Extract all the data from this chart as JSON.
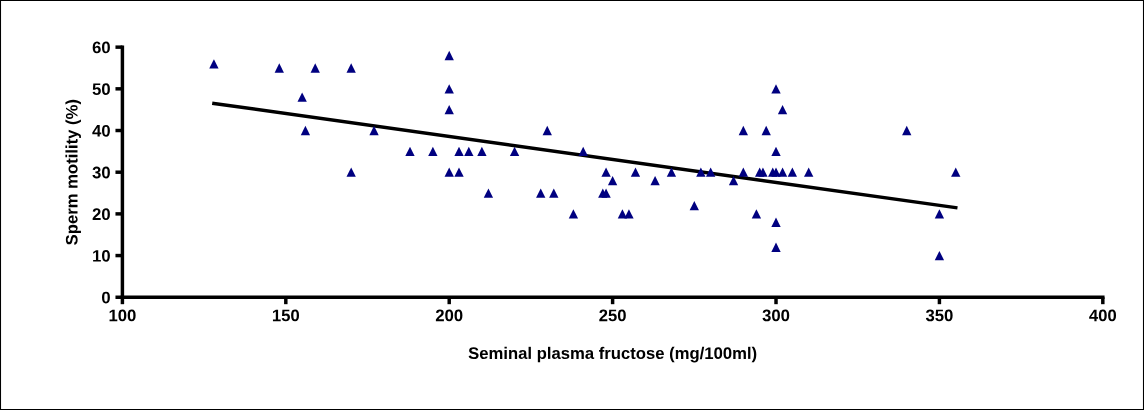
{
  "chart_data": {
    "type": "scatter",
    "xlabel": "Seminal plasma fructose (mg/100ml)",
    "ylabel": "Sperm motility (%)",
    "xlim": [
      100,
      400
    ],
    "xticks": [
      100,
      150,
      200,
      250,
      300,
      350,
      400
    ],
    "ylim": [
      0,
      60
    ],
    "yticks": [
      0,
      10,
      20,
      30,
      40,
      50,
      60
    ],
    "grid": false,
    "legend": false,
    "series": [
      {
        "color": "#000080",
        "marker": "triangle",
        "x": [
          128,
          148,
          155,
          156,
          159,
          170,
          170,
          177,
          188,
          195,
          200,
          200,
          200,
          200,
          203,
          203,
          206,
          210,
          212,
          220,
          228,
          230,
          232,
          238,
          241,
          247,
          248,
          248,
          250,
          253,
          255,
          257,
          263,
          268,
          275,
          277,
          280,
          287,
          290,
          290,
          294,
          295,
          296,
          297,
          299,
          300,
          300,
          300,
          300,
          300,
          302,
          302,
          305,
          310,
          340,
          350,
          350,
          355
        ],
        "values": [
          56,
          55,
          48,
          40,
          55,
          55,
          30,
          40,
          35,
          35,
          58,
          50,
          45,
          30,
          35,
          30,
          35,
          35,
          25,
          35,
          25,
          40,
          25,
          20,
          35,
          25,
          25,
          30,
          28,
          20,
          20,
          30,
          28,
          30,
          22,
          30,
          30,
          28,
          30,
          40,
          20,
          30,
          30,
          40,
          30,
          50,
          35,
          30,
          18,
          12,
          45,
          30,
          30,
          30,
          40,
          20,
          10,
          30
        ]
      },
      {
        "type": "line",
        "color": "#000000",
        "marker": "none",
        "line_style": "solid",
        "x": [
          128,
          355
        ],
        "values": [
          46.5,
          21.5
        ]
      }
    ]
  }
}
